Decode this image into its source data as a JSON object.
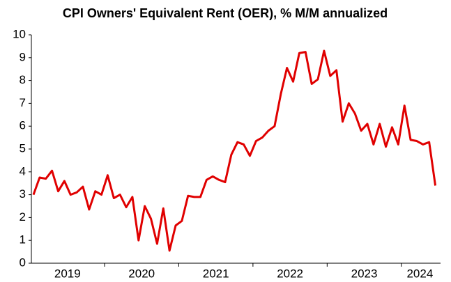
{
  "chart_data": {
    "type": "line",
    "title": "CPI Owners' Equivalent Rent (OER), % M/M annualized",
    "categories": [
      null,
      null,
      null,
      null,
      null,
      null,
      "2019",
      null,
      null,
      null,
      null,
      null,
      null,
      null,
      null,
      null,
      null,
      null,
      "2020",
      null,
      null,
      null,
      null,
      null,
      null,
      null,
      null,
      null,
      null,
      null,
      "2021",
      null,
      null,
      null,
      null,
      null,
      null,
      null,
      null,
      null,
      null,
      null,
      "2022",
      null,
      null,
      null,
      null,
      null,
      null,
      null,
      null,
      null,
      null,
      null,
      "2023",
      null,
      null,
      null,
      null,
      null,
      null,
      null,
      null,
      "2024",
      null,
      null
    ],
    "series": [
      {
        "name": "OER",
        "color": "#e00000",
        "values": [
          3.0,
          3.75,
          3.7,
          4.05,
          3.15,
          3.6,
          3.0,
          3.1,
          3.35,
          2.35,
          3.15,
          3.0,
          3.85,
          2.85,
          3.0,
          2.45,
          2.9,
          1.0,
          2.5,
          1.95,
          0.85,
          2.4,
          0.55,
          1.65,
          1.85,
          2.95,
          2.9,
          2.9,
          3.65,
          3.8,
          3.65,
          3.55,
          4.75,
          5.3,
          5.2,
          4.7,
          5.35,
          5.5,
          5.8,
          6.0,
          7.4,
          8.55,
          7.95,
          9.2,
          9.25,
          7.85,
          8.05,
          9.3,
          8.2,
          8.45,
          6.2,
          7.0,
          6.55,
          5.8,
          6.1,
          5.2,
          6.1,
          5.1,
          5.95,
          5.2,
          6.9,
          5.4,
          5.35,
          5.2,
          5.3,
          3.4
        ]
      }
    ],
    "ylim": [
      0,
      10
    ],
    "yticks": [
      0,
      1,
      2,
      3,
      4,
      5,
      6,
      7,
      8,
      9,
      10
    ],
    "grid": false
  }
}
